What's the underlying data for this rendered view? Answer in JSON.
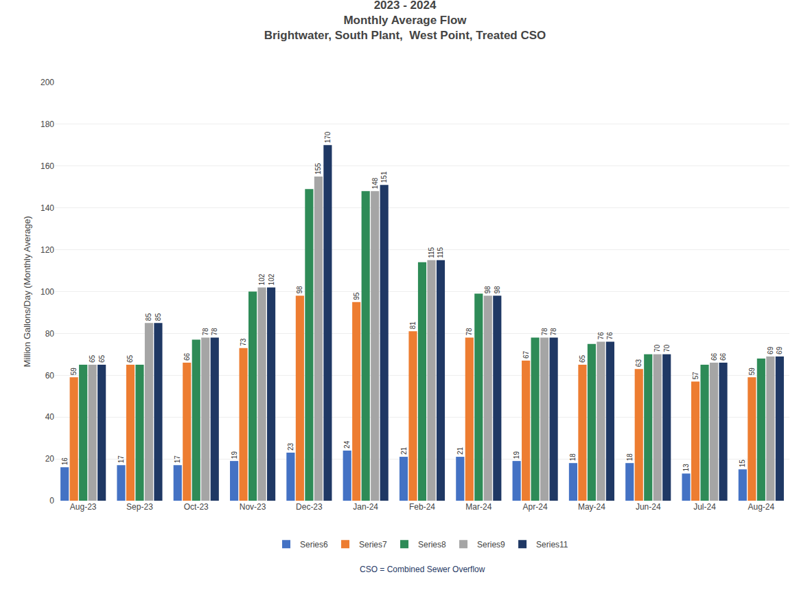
{
  "chart_data": {
    "type": "bar",
    "title": "2023 - 2024\nMonthly Average Flow\nBrightwater, South Plant,  West Point, Treated CSO",
    "y_label": "Million Gallons/Day (Monthly Average)",
    "annotations": [
      "CSO = Combined Sewer Overflow"
    ],
    "categories": [
      "Aug-23",
      "Sep-23",
      "Oct-23",
      "Nov-23",
      "Dec-23",
      "Jan-24",
      "Feb-24",
      "Mar-24",
      "Apr-24",
      "May-24",
      "Jun-24",
      "Jul-24",
      "Aug-24"
    ],
    "series": [
      {
        "name": "Series6",
        "color": "#4472C4",
        "data_labels": true,
        "values": [
          16,
          17,
          17,
          19,
          23,
          24,
          21,
          21,
          19,
          18,
          18,
          13,
          15
        ]
      },
      {
        "name": "Series7",
        "color": "#ED7D31",
        "data_labels": true,
        "values": [
          59,
          65,
          66,
          73,
          98,
          95,
          81,
          78,
          67,
          65,
          63,
          57,
          59
        ]
      },
      {
        "name": "Series8",
        "color": "#2E8B57",
        "data_labels": false,
        "values": [
          65,
          65,
          77,
          100,
          149,
          148,
          114,
          99,
          78,
          75,
          70,
          65,
          68
        ]
      },
      {
        "name": "Series9",
        "color": "#A5A5A5",
        "data_labels": true,
        "values": [
          65,
          85,
          78,
          102,
          155,
          148,
          115,
          98,
          78,
          76,
          70,
          66,
          69
        ]
      },
      {
        "name": "Series11",
        "color": "#1F3864",
        "data_labels": true,
        "values": [
          65,
          85,
          78,
          102,
          170,
          151,
          115,
          98,
          78,
          76,
          70,
          66,
          69
        ]
      }
    ],
    "ylim": [
      0,
      200
    ],
    "yticks": [
      0,
      20,
      40,
      60,
      80,
      100,
      120,
      140,
      160,
      180,
      200
    ],
    "grid": true,
    "legend": "bottom"
  }
}
